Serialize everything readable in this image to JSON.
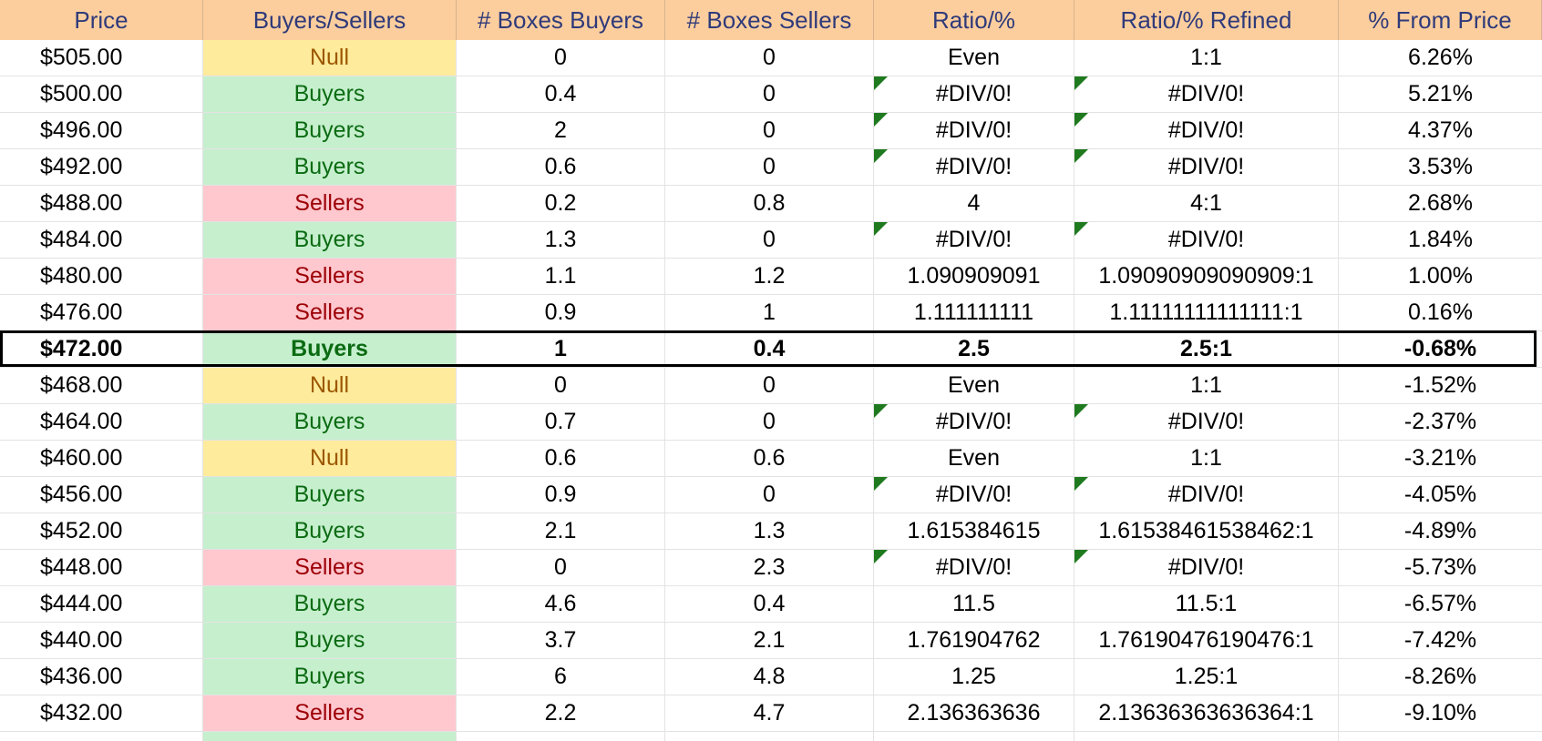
{
  "headers": [
    "Price",
    "Buyers/Sellers",
    "# Boxes Buyers",
    "# Boxes Sellers",
    "Ratio/%",
    "Ratio/% Refined",
    "% From Price"
  ],
  "colors": {
    "header_bg": "#fcce9e",
    "header_text": "#2f3a7a",
    "buyers_bg": "#c6efce",
    "buyers_text": "#0b6b12",
    "sellers_bg": "#ffc7ce",
    "sellers_text": "#9c0006",
    "null_bg": "#ffeb9c",
    "null_text": "#9c5700",
    "flag": "#1f7a1f"
  },
  "rows": [
    {
      "price": "$505.00",
      "side": "Null",
      "buyers": "0",
      "sellers": "0",
      "ratio": "Even",
      "refined": "1:1",
      "pct": "6.26%",
      "flag": false
    },
    {
      "price": "$500.00",
      "side": "Buyers",
      "buyers": "0.4",
      "sellers": "0",
      "ratio": "#DIV/0!",
      "refined": "#DIV/0!",
      "pct": "5.21%",
      "flag": true
    },
    {
      "price": "$496.00",
      "side": "Buyers",
      "buyers": "2",
      "sellers": "0",
      "ratio": "#DIV/0!",
      "refined": "#DIV/0!",
      "pct": "4.37%",
      "flag": true
    },
    {
      "price": "$492.00",
      "side": "Buyers",
      "buyers": "0.6",
      "sellers": "0",
      "ratio": "#DIV/0!",
      "refined": "#DIV/0!",
      "pct": "3.53%",
      "flag": true
    },
    {
      "price": "$488.00",
      "side": "Sellers",
      "buyers": "0.2",
      "sellers": "0.8",
      "ratio": "4",
      "refined": "4:1",
      "pct": "2.68%",
      "flag": false
    },
    {
      "price": "$484.00",
      "side": "Buyers",
      "buyers": "1.3",
      "sellers": "0",
      "ratio": "#DIV/0!",
      "refined": "#DIV/0!",
      "pct": "1.84%",
      "flag": true
    },
    {
      "price": "$480.00",
      "side": "Sellers",
      "buyers": "1.1",
      "sellers": "1.2",
      "ratio": "1.090909091",
      "refined": "1.09090909090909:1",
      "pct": "1.00%",
      "flag": false
    },
    {
      "price": "$476.00",
      "side": "Sellers",
      "buyers": "0.9",
      "sellers": "1",
      "ratio": "1.111111111",
      "refined": "1.11111111111111:1",
      "pct": "0.16%",
      "flag": false
    },
    {
      "price": "$472.00",
      "side": "Buyers",
      "buyers": "1",
      "sellers": "0.4",
      "ratio": "2.5",
      "refined": "2.5:1",
      "pct": "-0.68%",
      "flag": false,
      "current": true
    },
    {
      "price": "$468.00",
      "side": "Null",
      "buyers": "0",
      "sellers": "0",
      "ratio": "Even",
      "refined": "1:1",
      "pct": "-1.52%",
      "flag": false
    },
    {
      "price": "$464.00",
      "side": "Buyers",
      "buyers": "0.7",
      "sellers": "0",
      "ratio": "#DIV/0!",
      "refined": "#DIV/0!",
      "pct": "-2.37%",
      "flag": true
    },
    {
      "price": "$460.00",
      "side": "Null",
      "buyers": "0.6",
      "sellers": "0.6",
      "ratio": "Even",
      "refined": "1:1",
      "pct": "-3.21%",
      "flag": false
    },
    {
      "price": "$456.00",
      "side": "Buyers",
      "buyers": "0.9",
      "sellers": "0",
      "ratio": "#DIV/0!",
      "refined": "#DIV/0!",
      "pct": "-4.05%",
      "flag": true
    },
    {
      "price": "$452.00",
      "side": "Buyers",
      "buyers": "2.1",
      "sellers": "1.3",
      "ratio": "1.615384615",
      "refined": "1.61538461538462:1",
      "pct": "-4.89%",
      "flag": false
    },
    {
      "price": "$448.00",
      "side": "Sellers",
      "buyers": "0",
      "sellers": "2.3",
      "ratio": "#DIV/0!",
      "refined": "#DIV/0!",
      "pct": "-5.73%",
      "flag": true
    },
    {
      "price": "$444.00",
      "side": "Buyers",
      "buyers": "4.6",
      "sellers": "0.4",
      "ratio": "11.5",
      "refined": "11.5:1",
      "pct": "-6.57%",
      "flag": false
    },
    {
      "price": "$440.00",
      "side": "Buyers",
      "buyers": "3.7",
      "sellers": "2.1",
      "ratio": "1.761904762",
      "refined": "1.76190476190476:1",
      "pct": "-7.42%",
      "flag": false
    },
    {
      "price": "$436.00",
      "side": "Buyers",
      "buyers": "6",
      "sellers": "4.8",
      "ratio": "1.25",
      "refined": "1.25:1",
      "pct": "-8.26%",
      "flag": false
    },
    {
      "price": "$432.00",
      "side": "Sellers",
      "buyers": "2.2",
      "sellers": "4.7",
      "ratio": "2.136363636",
      "refined": "2.13636363636364:1",
      "pct": "-9.10%",
      "flag": false
    }
  ]
}
